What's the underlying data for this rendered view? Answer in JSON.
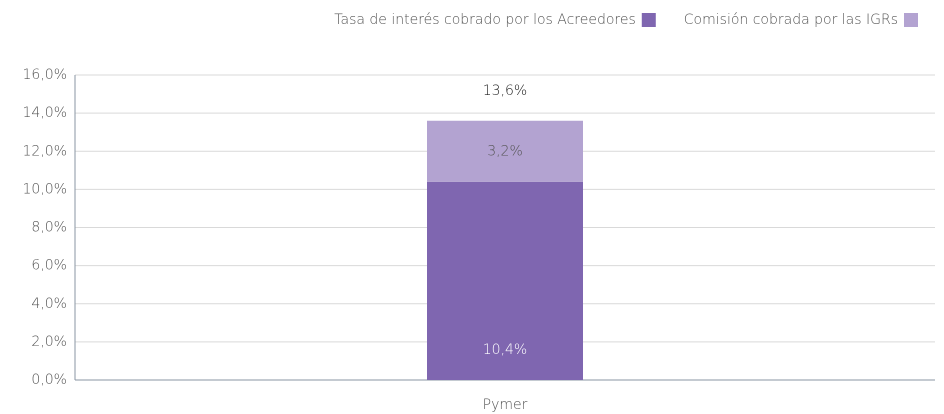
{
  "chart_data": {
    "type": "stacked_bar",
    "categories": [
      "Pymer"
    ],
    "series": [
      {
        "name": "Tasa de interés cobrado por los Acreedores",
        "color": "#7f66b0",
        "values": [
          10.4
        ],
        "value_labels": [
          "10,4%"
        ]
      },
      {
        "name": "Comisión cobrada por las IGRs",
        "color": "#b3a3d1",
        "values": [
          3.2
        ],
        "value_labels": [
          "3,2%"
        ]
      }
    ],
    "total_labels": [
      "13,6%"
    ],
    "ylim": [
      0,
      16
    ],
    "yticks": [
      {
        "value": 0,
        "label": "0,0%"
      },
      {
        "value": 2,
        "label": "2,0%"
      },
      {
        "value": 4,
        "label": "4,0%"
      },
      {
        "value": 6,
        "label": "6,0%"
      },
      {
        "value": 8,
        "label": "8,0%"
      },
      {
        "value": 10,
        "label": "10,0%"
      },
      {
        "value": 12,
        "label": "12,0%"
      },
      {
        "value": 14,
        "label": "14,0%"
      },
      {
        "value": 16,
        "label": "16,0%"
      }
    ],
    "grid": true,
    "legend": "top-right"
  }
}
